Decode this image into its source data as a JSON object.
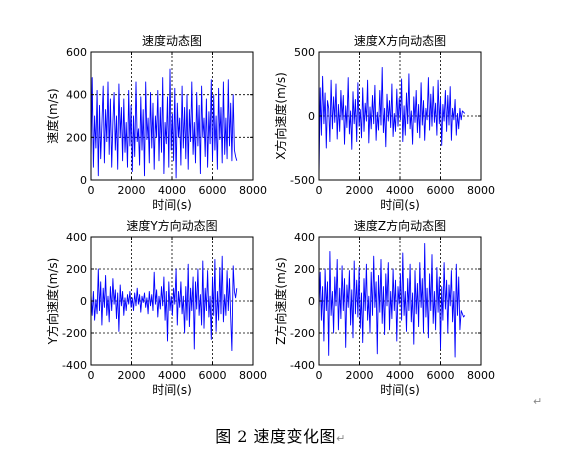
{
  "figure_caption": "图 2  速度变化图",
  "paragraph_mark": "↵",
  "caption_mark": "↵",
  "chart_data": [
    {
      "type": "line",
      "title": "速度动态图",
      "xlabel": "时间(s)",
      "ylabel": "速度(m/s)",
      "xlim": [
        0,
        8000
      ],
      "ylim": [
        0,
        600
      ],
      "xticks": [
        0,
        2000,
        4000,
        6000,
        8000
      ],
      "yticks": [
        0,
        200,
        400,
        600
      ],
      "grid": true,
      "color": "#0000ff",
      "x": [
        0,
        60,
        120,
        180,
        240,
        300,
        360,
        420,
        480,
        540,
        600,
        660,
        720,
        780,
        840,
        900,
        960,
        1020,
        1080,
        1140,
        1200,
        1260,
        1320,
        1380,
        1440,
        1500,
        1560,
        1620,
        1680,
        1740,
        1800,
        1860,
        1920,
        1980,
        2040,
        2100,
        2160,
        2220,
        2280,
        2340,
        2400,
        2460,
        2520,
        2580,
        2640,
        2700,
        2760,
        2820,
        2880,
        2940,
        3000,
        3060,
        3120,
        3180,
        3240,
        3300,
        3360,
        3420,
        3480,
        3540,
        3600,
        3660,
        3720,
        3780,
        3840,
        3900,
        3960,
        4020,
        4080,
        4140,
        4200,
        4260,
        4320,
        4380,
        4440,
        4500,
        4560,
        4620,
        4680,
        4740,
        4800,
        4860,
        4920,
        4980,
        5040,
        5100,
        5160,
        5220,
        5280,
        5340,
        5400,
        5460,
        5520,
        5580,
        5640,
        5700,
        5760,
        5820,
        5880,
        5940,
        6000,
        6060,
        6120,
        6180,
        6240,
        6300,
        6360,
        6420,
        6480,
        6540,
        6600,
        6660,
        6720,
        6780,
        6840,
        6900,
        6960,
        7020,
        7080,
        7140,
        7200
      ],
      "y": [
        100,
        480,
        60,
        300,
        150,
        420,
        20,
        350,
        100,
        260,
        440,
        80,
        330,
        180,
        460,
        120,
        380,
        60,
        270,
        410,
        140,
        300,
        50,
        450,
        200,
        340,
        90,
        380,
        130,
        270,
        60,
        420,
        160,
        350,
        40,
        300,
        110,
        460,
        180,
        240,
        70,
        390,
        140,
        330,
        20,
        460,
        190,
        290,
        80,
        410,
        150,
        360,
        50,
        300,
        200,
        420,
        90,
        340,
        130,
        480,
        30,
        270,
        170,
        390,
        60,
        520,
        140,
        310,
        90,
        430,
        10,
        360,
        200,
        290,
        70,
        440,
        150,
        340,
        100,
        400,
        50,
        330,
        180,
        460,
        120,
        270,
        80,
        410,
        160,
        350,
        30,
        440,
        200,
        290,
        110,
        380,
        60,
        320,
        170,
        470,
        90,
        400,
        140,
        300,
        50,
        430,
        190,
        340,
        80,
        460,
        120,
        290,
        100,
        470,
        160,
        360,
        90,
        400,
        140,
        110,
        90
      ]
    },
    {
      "type": "line",
      "title": "速度X方向动态图",
      "xlabel": "时间(s)",
      "ylabel": "X方向速度(m/s)",
      "xlim": [
        0,
        8000
      ],
      "ylim": [
        -500,
        500
      ],
      "xticks": [
        0,
        2000,
        4000,
        6000,
        8000
      ],
      "yticks": [
        -500,
        0,
        500
      ],
      "grid": true,
      "color": "#0000ff",
      "x": [
        0,
        60,
        120,
        180,
        240,
        300,
        360,
        420,
        480,
        540,
        600,
        660,
        720,
        780,
        840,
        900,
        960,
        1020,
        1080,
        1140,
        1200,
        1260,
        1320,
        1380,
        1440,
        1500,
        1560,
        1620,
        1680,
        1740,
        1800,
        1860,
        1920,
        1980,
        2040,
        2100,
        2160,
        2220,
        2280,
        2340,
        2400,
        2460,
        2520,
        2580,
        2640,
        2700,
        2760,
        2820,
        2880,
        2940,
        3000,
        3060,
        3120,
        3180,
        3240,
        3300,
        3360,
        3420,
        3480,
        3540,
        3600,
        3660,
        3720,
        3780,
        3840,
        3900,
        3960,
        4020,
        4080,
        4140,
        4200,
        4260,
        4320,
        4380,
        4440,
        4500,
        4560,
        4620,
        4680,
        4740,
        4800,
        4860,
        4920,
        4980,
        5040,
        5100,
        5160,
        5220,
        5280,
        5340,
        5400,
        5460,
        5520,
        5580,
        5640,
        5700,
        5760,
        5820,
        5880,
        5940,
        6000,
        6060,
        6120,
        6180,
        6240,
        6300,
        6360,
        6420,
        6480,
        6540,
        6600,
        6660,
        6720,
        6780,
        6840,
        6900,
        6960,
        7020,
        7080,
        7140,
        7200
      ],
      "y": [
        -480,
        220,
        -150,
        310,
        -60,
        180,
        -250,
        120,
        60,
        -200,
        280,
        -100,
        150,
        -50,
        250,
        -180,
        90,
        -120,
        200,
        -30,
        160,
        -220,
        80,
        -90,
        300,
        -140,
        40,
        -260,
        190,
        -60,
        130,
        -200,
        260,
        -80,
        50,
        -170,
        220,
        -120,
        100,
        -40,
        280,
        -210,
        70,
        -100,
        160,
        -60,
        240,
        -190,
        30,
        -110,
        200,
        -70,
        380,
        -130,
        60,
        -240,
        170,
        -40,
        120,
        -90,
        250,
        -160,
        20,
        -120,
        210,
        -80,
        140,
        -30,
        290,
        -200,
        80,
        -150,
        180,
        -60,
        330,
        -100,
        40,
        -220,
        150,
        -50,
        200,
        -130,
        90,
        -170,
        260,
        -70,
        120,
        -190,
        60,
        -30,
        300,
        -110,
        170,
        -80,
        230,
        -50,
        100,
        -150,
        280,
        -60,
        140,
        -230,
        90,
        -40,
        200,
        -120,
        160,
        -70,
        230,
        -190,
        60,
        -30,
        130,
        -150,
        20,
        -100,
        60,
        -30,
        40,
        30,
        20
      ]
    },
    {
      "type": "line",
      "title": "速度Y方向动态图",
      "xlabel": "时间(s)",
      "ylabel": "Y方向速度(m/s)",
      "xlim": [
        0,
        8000
      ],
      "ylim": [
        -400,
        400
      ],
      "xticks": [
        0,
        2000,
        4000,
        6000,
        8000
      ],
      "yticks": [
        -400,
        -200,
        0,
        200,
        400
      ],
      "grid": true,
      "color": "#0000ff",
      "x": [
        0,
        60,
        120,
        180,
        240,
        300,
        360,
        420,
        480,
        540,
        600,
        660,
        720,
        780,
        840,
        900,
        960,
        1020,
        1080,
        1140,
        1200,
        1260,
        1320,
        1380,
        1440,
        1500,
        1560,
        1620,
        1680,
        1740,
        1800,
        1860,
        1920,
        1980,
        2040,
        2100,
        2160,
        2220,
        2280,
        2340,
        2400,
        2460,
        2520,
        2580,
        2640,
        2700,
        2760,
        2820,
        2880,
        2940,
        3000,
        3060,
        3120,
        3180,
        3240,
        3300,
        3360,
        3420,
        3480,
        3540,
        3600,
        3660,
        3720,
        3780,
        3840,
        3900,
        3960,
        4020,
        4080,
        4140,
        4200,
        4260,
        4320,
        4380,
        4440,
        4500,
        4560,
        4620,
        4680,
        4740,
        4800,
        4860,
        4920,
        4980,
        5040,
        5100,
        5160,
        5220,
        5280,
        5340,
        5400,
        5460,
        5520,
        5580,
        5640,
        5700,
        5760,
        5820,
        5880,
        5940,
        6000,
        6060,
        6120,
        6180,
        6240,
        6300,
        6360,
        6420,
        6480,
        6540,
        6600,
        6660,
        6720,
        6780,
        6840,
        6900,
        6960,
        7020,
        7080,
        7140,
        7200
      ],
      "y": [
        40,
        -90,
        60,
        -120,
        10,
        -80,
        200,
        -60,
        120,
        -150,
        80,
        -40,
        160,
        -90,
        30,
        -130,
        90,
        -60,
        140,
        -20,
        70,
        -110,
        50,
        -190,
        100,
        -30,
        60,
        -90,
        20,
        -60,
        40,
        -20,
        60,
        -40,
        20,
        -60,
        50,
        -30,
        80,
        -20,
        40,
        -70,
        30,
        -10,
        50,
        -40,
        20,
        -80,
        60,
        -30,
        40,
        -60,
        180,
        -20,
        70,
        -100,
        30,
        -50,
        90,
        -30,
        150,
        -120,
        60,
        -250,
        120,
        -60,
        30,
        -90,
        80,
        -20,
        200,
        -150,
        60,
        -40,
        120,
        -80,
        30,
        -200,
        90,
        -120,
        230,
        -160,
        80,
        -60,
        150,
        -300,
        120,
        -50,
        200,
        -90,
        40,
        -150,
        250,
        -170,
        80,
        -60,
        190,
        -100,
        30,
        -240,
        150,
        -90,
        260,
        -190,
        60,
        -120,
        210,
        -80,
        280,
        -130,
        40,
        -90,
        190,
        -60,
        140,
        -100,
        -310,
        220,
        60,
        20,
        80
      ]
    },
    {
      "type": "line",
      "title": "速度Z方向动态图",
      "xlabel": "时间(s)",
      "ylabel": "Z方向速度(m/s)",
      "xlim": [
        0,
        8000
      ],
      "ylim": [
        -400,
        400
      ],
      "xticks": [
        0,
        2000,
        4000,
        6000,
        8000
      ],
      "yticks": [
        -400,
        -200,
        0,
        200,
        400
      ],
      "grid": true,
      "color": "#0000ff",
      "x": [
        0,
        60,
        120,
        180,
        240,
        300,
        360,
        420,
        480,
        540,
        600,
        660,
        720,
        780,
        840,
        900,
        960,
        1020,
        1080,
        1140,
        1200,
        1260,
        1320,
        1380,
        1440,
        1500,
        1560,
        1620,
        1680,
        1740,
        1800,
        1860,
        1920,
        1980,
        2040,
        2100,
        2160,
        2220,
        2280,
        2340,
        2400,
        2460,
        2520,
        2580,
        2640,
        2700,
        2760,
        2820,
        2880,
        2940,
        3000,
        3060,
        3120,
        3180,
        3240,
        3300,
        3360,
        3420,
        3480,
        3540,
        3600,
        3660,
        3720,
        3780,
        3840,
        3900,
        3960,
        4020,
        4080,
        4140,
        4200,
        4260,
        4320,
        4380,
        4440,
        4500,
        4560,
        4620,
        4680,
        4740,
        4800,
        4860,
        4920,
        4980,
        5040,
        5100,
        5160,
        5220,
        5280,
        5340,
        5400,
        5460,
        5520,
        5580,
        5640,
        5700,
        5760,
        5820,
        5880,
        5940,
        6000,
        6060,
        6120,
        6180,
        6240,
        6300,
        6360,
        6420,
        6480,
        6540,
        6600,
        6660,
        6720,
        6780,
        6840,
        6900,
        6960,
        7020,
        7080,
        7140,
        7200
      ],
      "y": [
        -50,
        180,
        -120,
        90,
        -250,
        200,
        -60,
        120,
        -340,
        310,
        -90,
        60,
        -200,
        150,
        -30,
        260,
        -180,
        80,
        -110,
        220,
        -60,
        140,
        -290,
        100,
        -40,
        190,
        -150,
        70,
        -230,
        250,
        -80,
        130,
        -100,
        210,
        -170,
        50,
        -260,
        140,
        -60,
        230,
        -120,
        30,
        -200,
        180,
        -90,
        280,
        -40,
        120,
        -330,
        160,
        -70,
        260,
        -140,
        90,
        -210,
        170,
        -30,
        240,
        -180,
        60,
        -110,
        200,
        -60,
        130,
        -250,
        90,
        -20,
        170,
        -120,
        300,
        -90,
        60,
        -190,
        140,
        -60,
        230,
        -130,
        50,
        -270,
        190,
        -80,
        110,
        -160,
        240,
        -40,
        140,
        -200,
        360,
        -100,
        80,
        -230,
        170,
        -60,
        290,
        -140,
        60,
        -180,
        210,
        -70,
        150,
        -300,
        90,
        -120,
        240,
        -50,
        130,
        -200,
        100,
        -30,
        190,
        -130,
        60,
        -350,
        230,
        -90,
        150,
        -180,
        -60,
        -80,
        -100,
        -90
      ]
    }
  ]
}
